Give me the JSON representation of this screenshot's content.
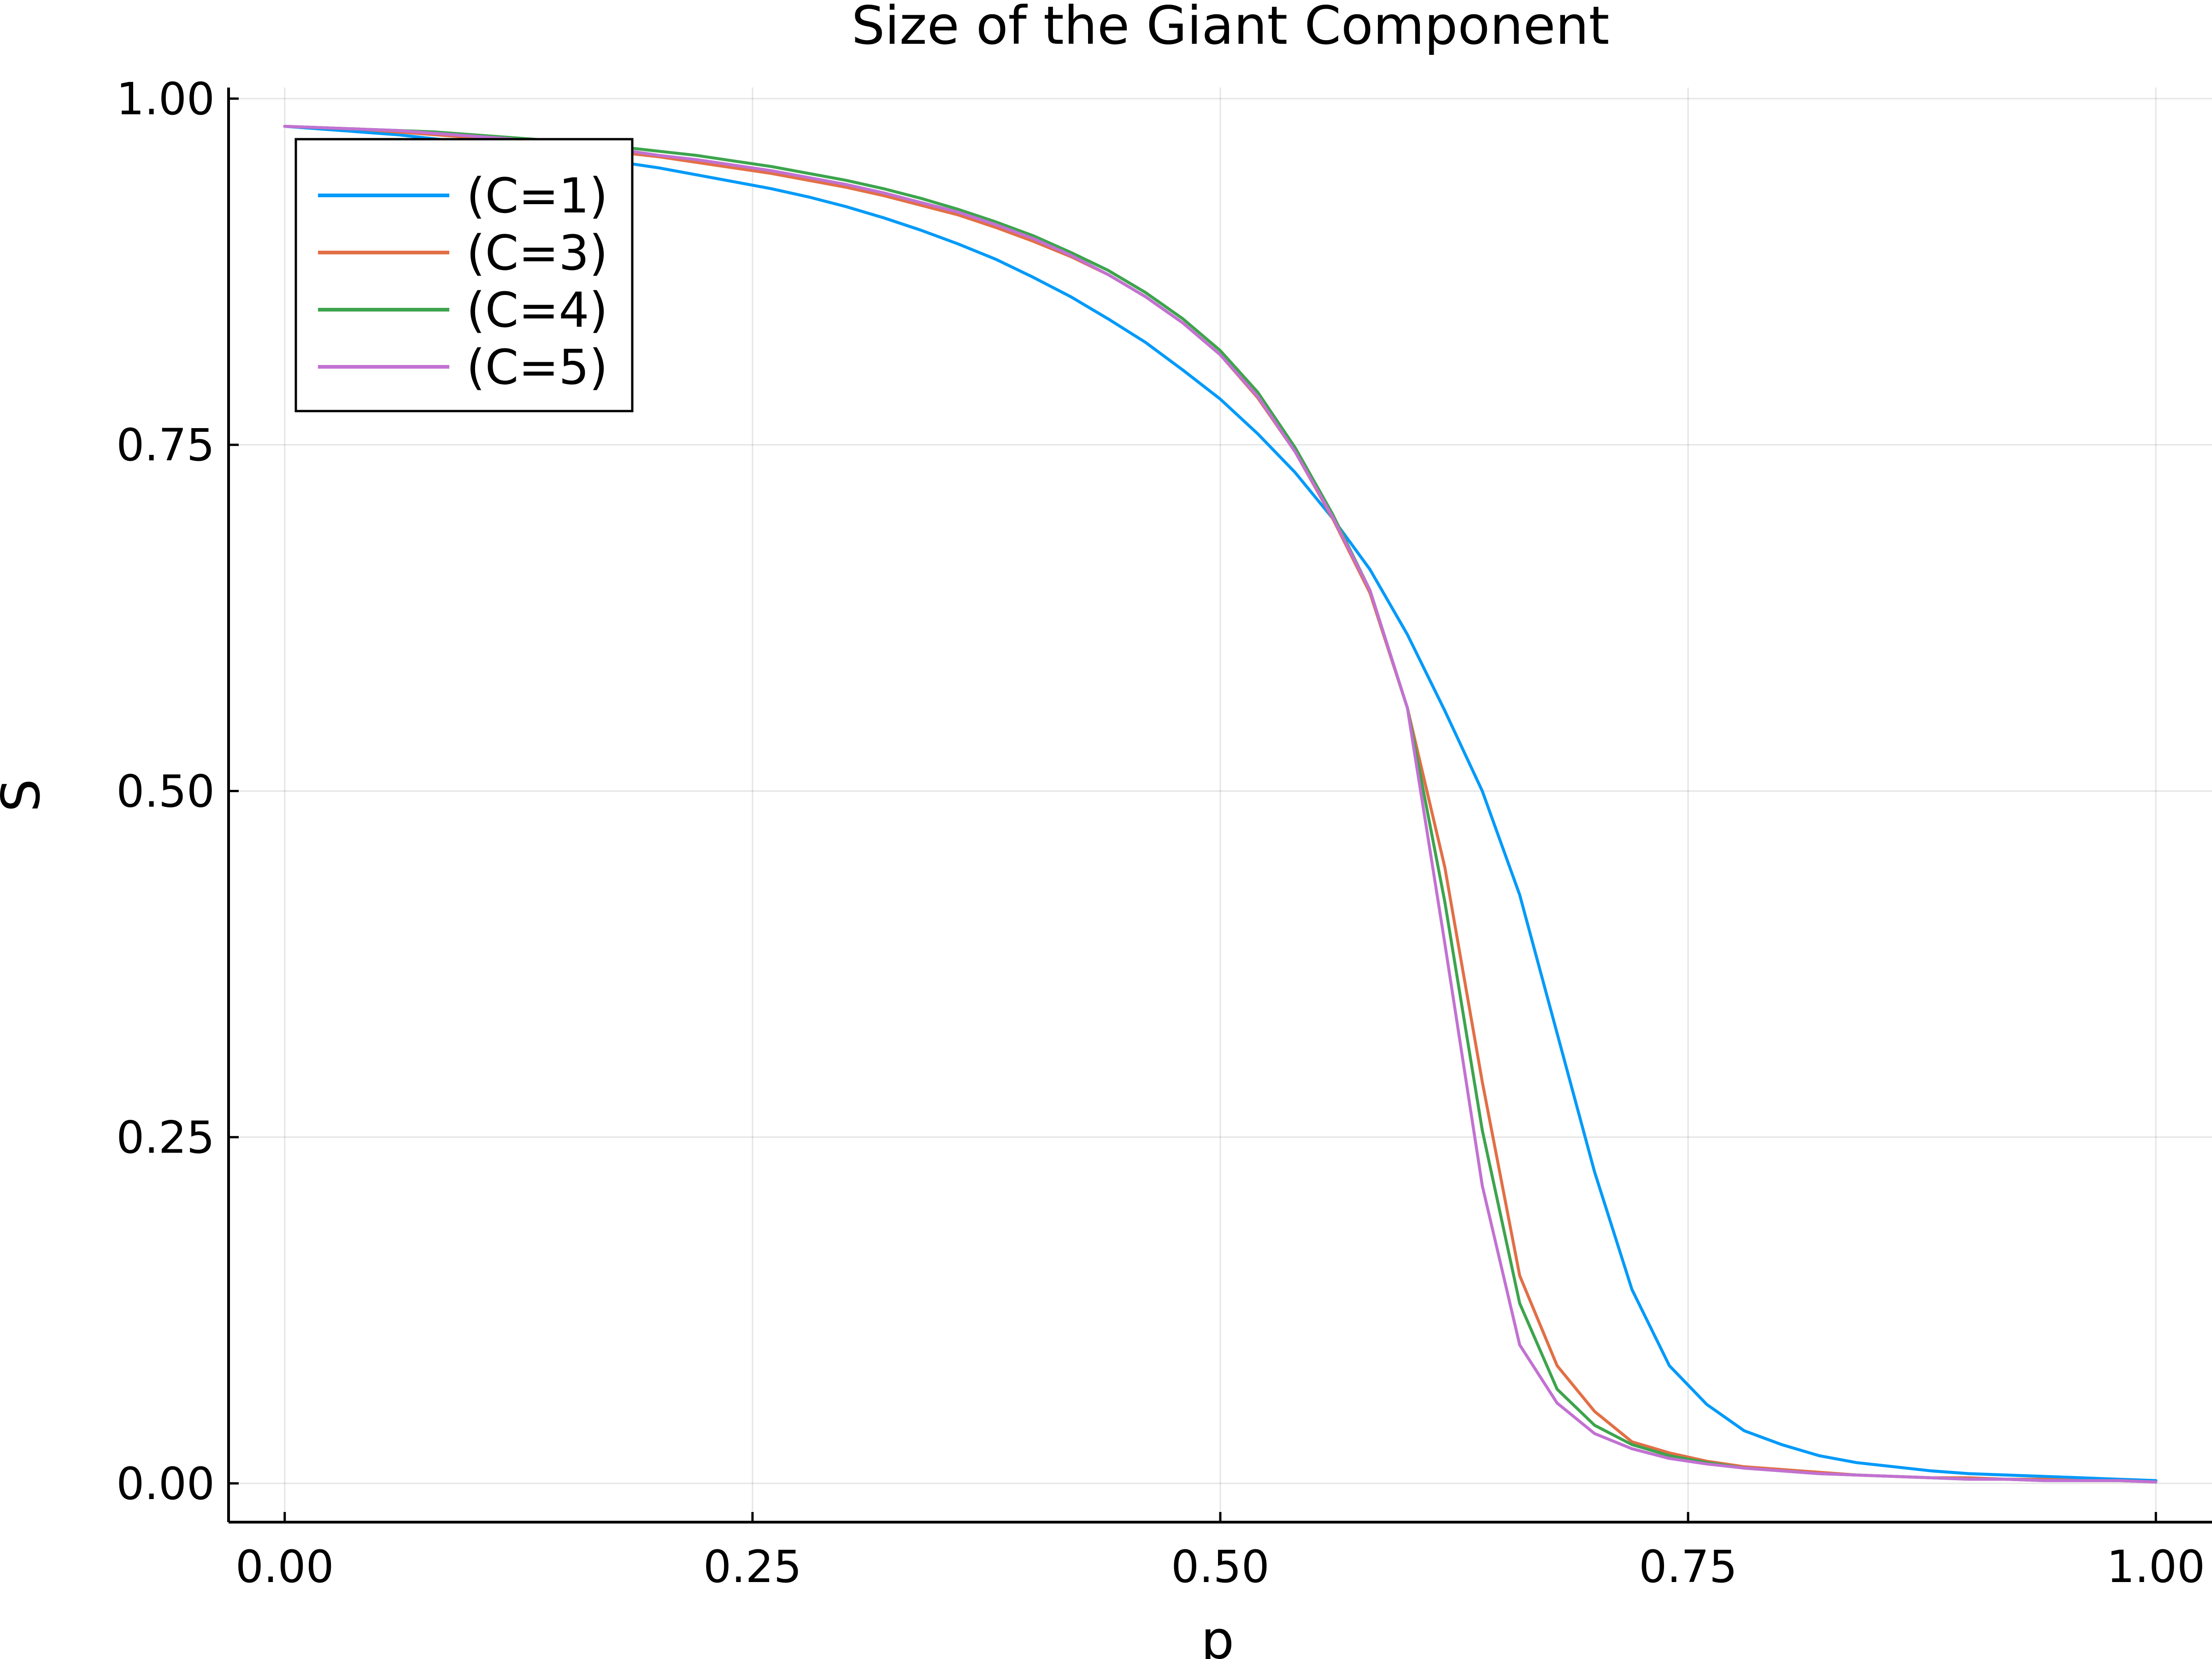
{
  "chart_data": {
    "type": "line",
    "title": "Size of the Giant Component",
    "xlabel": "p",
    "ylabel": "S",
    "xlim": [
      -0.03,
      1.03
    ],
    "ylim": [
      -0.028,
      1.008
    ],
    "xticks": [
      0.0,
      0.25,
      0.5,
      0.75,
      1.0
    ],
    "xtick_labels": [
      "0.00",
      "0.25",
      "0.50",
      "0.75",
      "1.00"
    ],
    "yticks": [
      0.0,
      0.25,
      0.5,
      0.75,
      1.0
    ],
    "ytick_labels": [
      "0.00",
      "0.25",
      "0.50",
      "0.75",
      "1.00"
    ],
    "grid": true,
    "legend_position": "top-left",
    "x": [
      0.0,
      0.02,
      0.04,
      0.06,
      0.08,
      0.1,
      0.12,
      0.14,
      0.16,
      0.18,
      0.2,
      0.22,
      0.24,
      0.26,
      0.28,
      0.3,
      0.32,
      0.34,
      0.36,
      0.38,
      0.4,
      0.42,
      0.44,
      0.46,
      0.48,
      0.5,
      0.52,
      0.54,
      0.56,
      0.58,
      0.6,
      0.62,
      0.64,
      0.66,
      0.68,
      0.7,
      0.72,
      0.74,
      0.76,
      0.78,
      0.8,
      0.82,
      0.84,
      0.86,
      0.88,
      0.9,
      0.92,
      0.94,
      0.96,
      0.98,
      1.0
    ],
    "series": [
      {
        "name": "(C=1)",
        "color": "#009af9",
        "values": [
          0.98,
          0.978,
          0.976,
          0.974,
          0.971,
          0.968,
          0.965,
          0.962,
          0.958,
          0.954,
          0.95,
          0.945,
          0.94,
          0.935,
          0.929,
          0.922,
          0.914,
          0.905,
          0.895,
          0.884,
          0.871,
          0.857,
          0.841,
          0.824,
          0.804,
          0.783,
          0.758,
          0.73,
          0.697,
          0.66,
          0.613,
          0.558,
          0.5,
          0.425,
          0.325,
          0.225,
          0.14,
          0.085,
          0.057,
          0.038,
          0.028,
          0.02,
          0.015,
          0.012,
          0.009,
          0.007,
          0.006,
          0.005,
          0.004,
          0.003,
          0.002
        ]
      },
      {
        "name": "(C=3)",
        "color": "#e26f46",
        "values": [
          0.98,
          0.979,
          0.978,
          0.976,
          0.974,
          0.972,
          0.97,
          0.967,
          0.964,
          0.961,
          0.958,
          0.954,
          0.95,
          0.946,
          0.941,
          0.936,
          0.93,
          0.923,
          0.916,
          0.907,
          0.897,
          0.886,
          0.873,
          0.857,
          0.838,
          0.815,
          0.784,
          0.745,
          0.697,
          0.643,
          0.56,
          0.445,
          0.29,
          0.15,
          0.085,
          0.052,
          0.03,
          0.022,
          0.016,
          0.012,
          0.01,
          0.008,
          0.006,
          0.005,
          0.004,
          0.004,
          0.003,
          0.003,
          0.002,
          0.002,
          0.001
        ]
      },
      {
        "name": "(C=4)",
        "color": "#3da44d",
        "values": [
          0.98,
          0.979,
          0.978,
          0.977,
          0.976,
          0.974,
          0.972,
          0.97,
          0.967,
          0.965,
          0.962,
          0.959,
          0.955,
          0.951,
          0.946,
          0.941,
          0.935,
          0.928,
          0.92,
          0.911,
          0.901,
          0.889,
          0.876,
          0.86,
          0.841,
          0.818,
          0.788,
          0.748,
          0.7,
          0.645,
          0.56,
          0.42,
          0.255,
          0.13,
          0.068,
          0.042,
          0.028,
          0.02,
          0.015,
          0.011,
          0.009,
          0.007,
          0.006,
          0.005,
          0.004,
          0.003,
          0.003,
          0.002,
          0.002,
          0.002,
          0.001
        ]
      },
      {
        "name": "(C=5)",
        "color": "#c271d2",
        "values": [
          0.98,
          0.979,
          0.978,
          0.977,
          0.975,
          0.973,
          0.971,
          0.968,
          0.966,
          0.963,
          0.959,
          0.956,
          0.952,
          0.948,
          0.943,
          0.938,
          0.932,
          0.925,
          0.918,
          0.909,
          0.899,
          0.887,
          0.873,
          0.857,
          0.838,
          0.815,
          0.785,
          0.745,
          0.698,
          0.645,
          0.56,
          0.39,
          0.215,
          0.1,
          0.058,
          0.036,
          0.025,
          0.018,
          0.014,
          0.011,
          0.009,
          0.007,
          0.006,
          0.005,
          0.004,
          0.003,
          0.003,
          0.002,
          0.002,
          0.002,
          0.001
        ]
      }
    ]
  }
}
